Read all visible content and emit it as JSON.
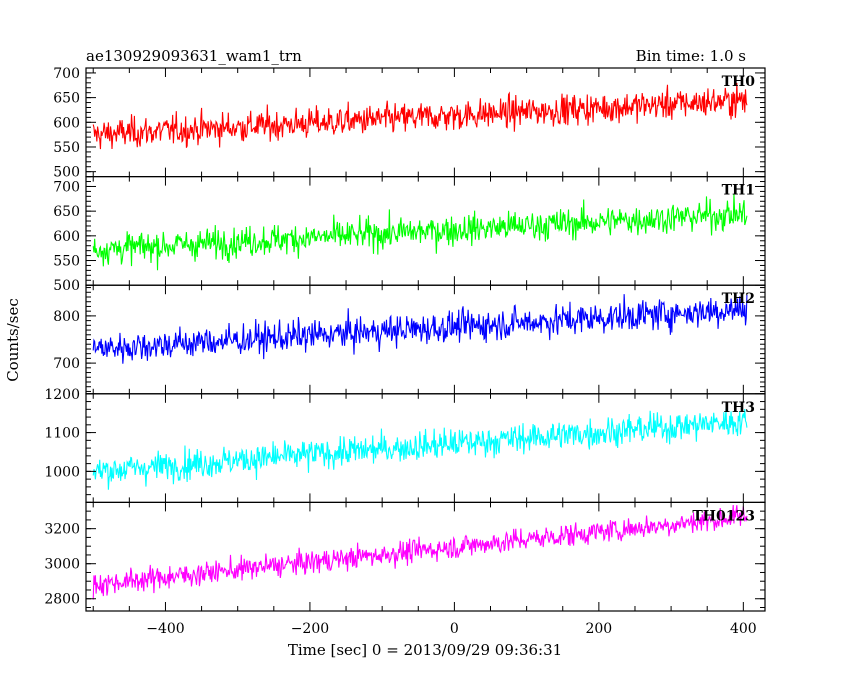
{
  "chart_data": {
    "type": "line",
    "title_left": "ae130929093631_wam1_trn",
    "title_right": "Bin time: 1.0 s",
    "xlabel": "Time [sec] 0 = 2013/09/29 09:36:31",
    "ylabel": "Counts/sec",
    "xlim": [
      -510,
      430
    ],
    "x_ticks": [
      -400,
      -200,
      0,
      200,
      400
    ],
    "x_tick_labels": [
      "−400",
      "−200",
      "0",
      "200",
      "400"
    ],
    "x_range": [
      -500,
      405
    ],
    "bin_time": 1.0,
    "grid": false,
    "panels": [
      {
        "name": "TH0",
        "color": "#ff0000",
        "ylim": [
          490,
          710
        ],
        "y_ticks": [
          500,
          550,
          600,
          650,
          700
        ],
        "y_tick_labels": [
          "500",
          "550",
          "600",
          "650",
          "700"
        ],
        "trend_start": 575,
        "trend_end": 645,
        "noise": 28
      },
      {
        "name": "TH1",
        "color": "#00ff00",
        "ylim": [
          500,
          720
        ],
        "y_ticks": [
          500,
          550,
          600,
          650,
          700
        ],
        "y_tick_labels": [
          "500",
          "550",
          "600",
          "650",
          "700"
        ],
        "trend_start": 572,
        "trend_end": 645,
        "noise": 28
      },
      {
        "name": "TH2",
        "color": "#0000ff",
        "ylim": [
          635,
          865
        ],
        "y_ticks": [
          700,
          800
        ],
        "y_tick_labels": [
          "700",
          "800"
        ],
        "trend_start": 730,
        "trend_end": 815,
        "noise": 30
      },
      {
        "name": "TH3",
        "color": "#00ffff",
        "ylim": [
          920,
          1200
        ],
        "y_ticks": [
          1000,
          1100,
          1200
        ],
        "y_tick_labels": [
          "1000",
          "1100",
          "1200"
        ],
        "trend_start": 1000,
        "trend_end": 1130,
        "noise": 35
      },
      {
        "name": "TH0123",
        "color": "#ff00ff",
        "ylim": [
          2730,
          3350
        ],
        "y_ticks": [
          2800,
          3000,
          3200
        ],
        "y_tick_labels": [
          "2800",
          "3000",
          "3200"
        ],
        "trend_start": 2880,
        "trend_end": 3270,
        "noise": 60
      }
    ]
  }
}
